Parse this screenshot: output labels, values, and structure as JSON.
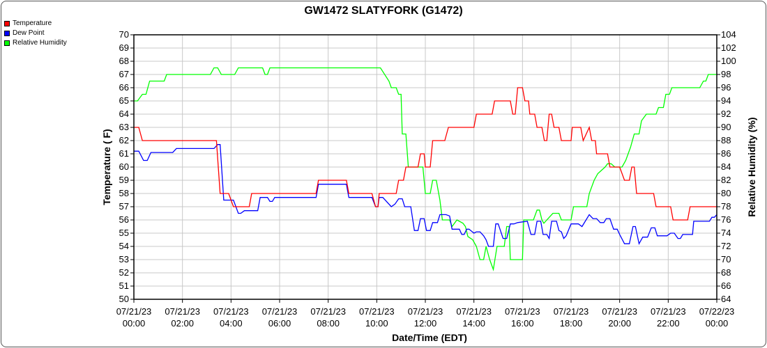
{
  "chart_data": {
    "type": "line",
    "title": "GW1472 SLATYFORK (G1472)",
    "xlabel": "Date/Time (EDT)",
    "ylabel_left": "Temperature ( F)",
    "ylabel_right": "Relative Humidity (%)",
    "xlim_hours": [
      0,
      24
    ],
    "x_ticks": [
      {
        "date": "07/21/23",
        "time": "00:00",
        "hour": 0
      },
      {
        "date": "07/21/23",
        "time": "02:00",
        "hour": 2
      },
      {
        "date": "07/21/23",
        "time": "04:00",
        "hour": 4
      },
      {
        "date": "07/21/23",
        "time": "06:00",
        "hour": 6
      },
      {
        "date": "07/21/23",
        "time": "08:00",
        "hour": 8
      },
      {
        "date": "07/21/23",
        "time": "10:00",
        "hour": 10
      },
      {
        "date": "07/21/23",
        "time": "12:00",
        "hour": 12
      },
      {
        "date": "07/21/23",
        "time": "14:00",
        "hour": 14
      },
      {
        "date": "07/21/23",
        "time": "16:00",
        "hour": 16
      },
      {
        "date": "07/21/23",
        "time": "18:00",
        "hour": 18
      },
      {
        "date": "07/21/23",
        "time": "20:00",
        "hour": 20
      },
      {
        "date": "07/21/23",
        "time": "22:00",
        "hour": 22
      },
      {
        "date": "07/22/23",
        "time": "00:00",
        "hour": 24
      }
    ],
    "ylim_left": [
      50,
      70
    ],
    "ylim_right": [
      64,
      104
    ],
    "y_ticks_left": [
      50,
      51,
      52,
      53,
      54,
      55,
      56,
      57,
      58,
      59,
      60,
      61,
      62,
      63,
      64,
      65,
      66,
      67,
      68,
      69,
      70
    ],
    "y_ticks_right": [
      64,
      66,
      68,
      70,
      72,
      74,
      76,
      78,
      80,
      82,
      84,
      86,
      88,
      90,
      92,
      94,
      96,
      98,
      100,
      102,
      104
    ],
    "grid": true,
    "legend_position": "top-left",
    "series": [
      {
        "name": "Temperature",
        "color": "#ff0000",
        "axis": "left",
        "points": [
          [
            0,
            63
          ],
          [
            0.2,
            63
          ],
          [
            0.35,
            62
          ],
          [
            3.4,
            62
          ],
          [
            3.55,
            58
          ],
          [
            3.9,
            58
          ],
          [
            4.1,
            57
          ],
          [
            4.75,
            57
          ],
          [
            4.85,
            58
          ],
          [
            7.5,
            58
          ],
          [
            7.6,
            59
          ],
          [
            8.75,
            59
          ],
          [
            8.85,
            58
          ],
          [
            9.8,
            58
          ],
          [
            9.95,
            57
          ],
          [
            10.05,
            57
          ],
          [
            10.1,
            58
          ],
          [
            10.8,
            58
          ],
          [
            10.9,
            59
          ],
          [
            11.1,
            59
          ],
          [
            11.2,
            60
          ],
          [
            11.7,
            60
          ],
          [
            11.8,
            61
          ],
          [
            11.95,
            61
          ],
          [
            12.0,
            60
          ],
          [
            12.2,
            60
          ],
          [
            12.3,
            62
          ],
          [
            12.8,
            62
          ],
          [
            12.95,
            63
          ],
          [
            14.0,
            63
          ],
          [
            14.1,
            64
          ],
          [
            14.75,
            64
          ],
          [
            14.85,
            65
          ],
          [
            15.5,
            65
          ],
          [
            15.6,
            64
          ],
          [
            15.7,
            64
          ],
          [
            15.8,
            66
          ],
          [
            16.0,
            66
          ],
          [
            16.1,
            65
          ],
          [
            16.25,
            65
          ],
          [
            16.3,
            64
          ],
          [
            16.5,
            64
          ],
          [
            16.6,
            63
          ],
          [
            16.8,
            63
          ],
          [
            16.9,
            62
          ],
          [
            17.0,
            62
          ],
          [
            17.1,
            64
          ],
          [
            17.2,
            64
          ],
          [
            17.3,
            63
          ],
          [
            17.5,
            63
          ],
          [
            17.6,
            62
          ],
          [
            18.0,
            62
          ],
          [
            18.05,
            63
          ],
          [
            18.4,
            63
          ],
          [
            18.5,
            62
          ],
          [
            18.75,
            63
          ],
          [
            18.85,
            62
          ],
          [
            19.0,
            62
          ],
          [
            19.05,
            61
          ],
          [
            19.5,
            61
          ],
          [
            19.6,
            60
          ],
          [
            20.0,
            60
          ],
          [
            20.2,
            59
          ],
          [
            20.4,
            59
          ],
          [
            20.5,
            60
          ],
          [
            20.6,
            60
          ],
          [
            20.7,
            58
          ],
          [
            21.4,
            58
          ],
          [
            21.5,
            57
          ],
          [
            22.1,
            57
          ],
          [
            22.2,
            56
          ],
          [
            22.8,
            56
          ],
          [
            22.9,
            57
          ],
          [
            24,
            57
          ]
        ]
      },
      {
        "name": "Dew Point",
        "color": "#0000ff",
        "axis": "left",
        "points": [
          [
            0,
            61.2
          ],
          [
            0.2,
            61.2
          ],
          [
            0.4,
            60.5
          ],
          [
            0.55,
            60.5
          ],
          [
            0.7,
            61.1
          ],
          [
            1.6,
            61.1
          ],
          [
            1.75,
            61.4
          ],
          [
            3.3,
            61.4
          ],
          [
            3.45,
            61.7
          ],
          [
            3.55,
            61.7
          ],
          [
            3.7,
            57.5
          ],
          [
            4.1,
            57.5
          ],
          [
            4.3,
            56.5
          ],
          [
            4.4,
            56.5
          ],
          [
            4.55,
            56.7
          ],
          [
            5.1,
            56.7
          ],
          [
            5.2,
            57.7
          ],
          [
            5.5,
            57.7
          ],
          [
            5.6,
            57.4
          ],
          [
            5.7,
            57.4
          ],
          [
            5.8,
            57.7
          ],
          [
            7.5,
            57.7
          ],
          [
            7.6,
            58.7
          ],
          [
            8.75,
            58.7
          ],
          [
            8.85,
            57.7
          ],
          [
            9.8,
            57.7
          ],
          [
            9.95,
            57.0
          ],
          [
            10.05,
            57.0
          ],
          [
            10.1,
            57.7
          ],
          [
            10.25,
            57.7
          ],
          [
            10.6,
            57.0
          ],
          [
            10.75,
            57.2
          ],
          [
            10.9,
            57.6
          ],
          [
            11.05,
            57.6
          ],
          [
            11.15,
            57.0
          ],
          [
            11.4,
            57.0
          ],
          [
            11.55,
            55.2
          ],
          [
            11.7,
            55.2
          ],
          [
            11.8,
            56.1
          ],
          [
            11.95,
            56.1
          ],
          [
            12.05,
            55.2
          ],
          [
            12.2,
            55.2
          ],
          [
            12.3,
            55.8
          ],
          [
            12.5,
            55.8
          ],
          [
            12.6,
            56.4
          ],
          [
            12.85,
            56.4
          ],
          [
            13.0,
            56.3
          ],
          [
            13.1,
            55.3
          ],
          [
            13.4,
            55.3
          ],
          [
            13.5,
            54.9
          ],
          [
            13.6,
            54.9
          ],
          [
            13.7,
            55.3
          ],
          [
            13.8,
            55.3
          ],
          [
            14.0,
            55.0
          ],
          [
            14.1,
            55.1
          ],
          [
            14.25,
            55.1
          ],
          [
            14.4,
            54.8
          ],
          [
            14.5,
            54.5
          ],
          [
            14.6,
            54.0
          ],
          [
            14.8,
            54.0
          ],
          [
            14.9,
            55.7
          ],
          [
            15.0,
            55.7
          ],
          [
            15.2,
            54.6
          ],
          [
            15.35,
            54.6
          ],
          [
            15.5,
            55.7
          ],
          [
            15.65,
            55.7
          ],
          [
            15.8,
            55.8
          ],
          [
            16.2,
            55.9
          ],
          [
            16.35,
            54.9
          ],
          [
            16.5,
            54.9
          ],
          [
            16.6,
            55.9
          ],
          [
            16.75,
            55.9
          ],
          [
            16.85,
            54.9
          ],
          [
            17.0,
            54.9
          ],
          [
            17.1,
            54.6
          ],
          [
            17.2,
            55.9
          ],
          [
            17.4,
            55.9
          ],
          [
            17.5,
            55.2
          ],
          [
            17.6,
            55.1
          ],
          [
            17.7,
            54.6
          ],
          [
            17.8,
            54.8
          ],
          [
            18.0,
            55.7
          ],
          [
            18.3,
            55.7
          ],
          [
            18.45,
            55.5
          ],
          [
            18.75,
            56.4
          ],
          [
            18.9,
            56.1
          ],
          [
            19.05,
            56.1
          ],
          [
            19.2,
            55.8
          ],
          [
            19.35,
            55.8
          ],
          [
            19.45,
            56.1
          ],
          [
            19.6,
            56.1
          ],
          [
            19.75,
            55.3
          ],
          [
            19.9,
            55.3
          ],
          [
            20.0,
            54.9
          ],
          [
            20.2,
            54.2
          ],
          [
            20.4,
            54.2
          ],
          [
            20.55,
            55.5
          ],
          [
            20.65,
            55.5
          ],
          [
            20.8,
            54.2
          ],
          [
            20.95,
            54.7
          ],
          [
            21.15,
            54.7
          ],
          [
            21.3,
            55.4
          ],
          [
            21.45,
            55.4
          ],
          [
            21.55,
            54.8
          ],
          [
            21.95,
            54.8
          ],
          [
            22.1,
            55.0
          ],
          [
            22.25,
            55.0
          ],
          [
            22.4,
            54.6
          ],
          [
            22.5,
            54.6
          ],
          [
            22.6,
            54.9
          ],
          [
            23.0,
            54.9
          ],
          [
            23.05,
            55.9
          ],
          [
            23.7,
            55.9
          ],
          [
            23.8,
            56.2
          ],
          [
            23.9,
            56.2
          ],
          [
            24,
            56.4
          ]
        ]
      },
      {
        "name": "Relative Humidity",
        "color": "#00ff00",
        "axis": "right",
        "points": [
          [
            0,
            94
          ],
          [
            0.15,
            94
          ],
          [
            0.35,
            95
          ],
          [
            0.5,
            95
          ],
          [
            0.65,
            97
          ],
          [
            1.25,
            97
          ],
          [
            1.35,
            98
          ],
          [
            3.15,
            98
          ],
          [
            3.3,
            99
          ],
          [
            3.45,
            99
          ],
          [
            3.6,
            98
          ],
          [
            4.15,
            98
          ],
          [
            4.3,
            99
          ],
          [
            5.3,
            99
          ],
          [
            5.4,
            98
          ],
          [
            5.5,
            98
          ],
          [
            5.6,
            99
          ],
          [
            10.15,
            99
          ],
          [
            10.5,
            97
          ],
          [
            10.6,
            96
          ],
          [
            10.8,
            96
          ],
          [
            10.9,
            95
          ],
          [
            11.0,
            95
          ],
          [
            11.05,
            89
          ],
          [
            11.2,
            89
          ],
          [
            11.3,
            84
          ],
          [
            11.9,
            84
          ],
          [
            12.0,
            80
          ],
          [
            12.2,
            80
          ],
          [
            12.3,
            82
          ],
          [
            12.45,
            82
          ],
          [
            12.6,
            79
          ],
          [
            12.7,
            76
          ],
          [
            13.0,
            76
          ],
          [
            13.1,
            75
          ],
          [
            13.3,
            76
          ],
          [
            13.55,
            75.5
          ],
          [
            13.65,
            75
          ],
          [
            13.75,
            73.5
          ],
          [
            13.95,
            73
          ],
          [
            14.1,
            72
          ],
          [
            14.25,
            70
          ],
          [
            14.4,
            70
          ],
          [
            14.5,
            72
          ],
          [
            14.65,
            70
          ],
          [
            14.8,
            68.5
          ],
          [
            14.95,
            72
          ],
          [
            15.25,
            72
          ],
          [
            15.35,
            75
          ],
          [
            15.45,
            75
          ],
          [
            15.5,
            70
          ],
          [
            16.0,
            70
          ],
          [
            16.05,
            76
          ],
          [
            16.45,
            76
          ],
          [
            16.6,
            77.5
          ],
          [
            16.7,
            77.5
          ],
          [
            16.8,
            76
          ],
          [
            16.88,
            75.5
          ],
          [
            17.0,
            76
          ],
          [
            17.25,
            77
          ],
          [
            17.5,
            77
          ],
          [
            17.6,
            76
          ],
          [
            18.0,
            76
          ],
          [
            18.1,
            78
          ],
          [
            18.65,
            78
          ],
          [
            18.75,
            80
          ],
          [
            18.95,
            82
          ],
          [
            19.1,
            83
          ],
          [
            19.4,
            84
          ],
          [
            19.5,
            84.5
          ],
          [
            19.65,
            84.5
          ],
          [
            19.8,
            84
          ],
          [
            20.1,
            84
          ],
          [
            20.25,
            85
          ],
          [
            20.45,
            87
          ],
          [
            20.6,
            89
          ],
          [
            20.8,
            89
          ],
          [
            20.9,
            91
          ],
          [
            21.1,
            92
          ],
          [
            21.5,
            92
          ],
          [
            21.6,
            93
          ],
          [
            21.8,
            93
          ],
          [
            21.9,
            95
          ],
          [
            22.05,
            95
          ],
          [
            22.15,
            96
          ],
          [
            23.3,
            96
          ],
          [
            23.45,
            97
          ],
          [
            23.55,
            97
          ],
          [
            23.65,
            98
          ],
          [
            24,
            98
          ]
        ]
      }
    ]
  }
}
